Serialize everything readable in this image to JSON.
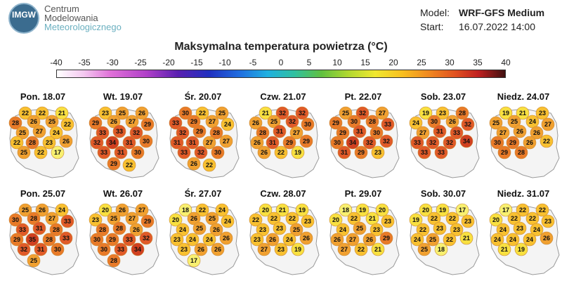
{
  "header": {
    "logo_text": "IMGW",
    "org_line1": "Centrum",
    "org_line2": "Modelowania",
    "org_line3": "Meteorologicznego",
    "model_label": "Model:",
    "model_value": "WRF-GFS Medium",
    "start_label": "Start:",
    "start_value": "16.07.2022 14:00"
  },
  "title": "Maksymalna temperatura powietrza (°C)",
  "scale": {
    "ticks": [
      "-40",
      "-35",
      "-30",
      "-25",
      "-20",
      "-15",
      "-10",
      "-5",
      "0",
      "5",
      "10",
      "15",
      "20",
      "25",
      "30",
      "35",
      "40"
    ]
  },
  "panels": [
    {
      "day": "Pon. 18.07",
      "values": [
        22,
        22,
        21,
        28,
        26,
        25,
        22,
        25,
        27,
        24,
        22,
        28,
        23,
        26,
        25,
        22,
        17
      ]
    },
    {
      "day": "Wt. 19.07",
      "values": [
        23,
        25,
        26,
        29,
        26,
        27,
        29,
        33,
        33,
        32,
        32,
        34,
        31,
        30,
        33,
        31,
        30,
        29,
        22
      ]
    },
    {
      "day": "Śr. 20.07",
      "values": [
        30,
        22,
        25,
        33,
        29,
        27,
        24,
        32,
        29,
        28,
        31,
        31,
        27,
        27,
        33,
        32,
        30,
        26,
        22
      ]
    },
    {
      "day": "Czw. 21.07",
      "values": [
        21,
        32,
        32,
        26,
        25,
        32,
        30,
        28,
        31,
        27,
        26,
        31,
        29,
        29,
        26,
        22,
        19
      ]
    },
    {
      "day": "Pt. 22.07",
      "values": [
        25,
        32,
        27,
        29,
        30,
        28,
        33,
        29,
        31,
        30,
        30,
        34,
        32,
        32,
        31,
        29,
        23
      ]
    },
    {
      "day": "Sob. 23.07",
      "values": [
        19,
        23,
        28,
        24,
        30,
        26,
        32,
        27,
        31,
        33,
        33,
        32,
        32,
        34,
        33,
        33
      ]
    },
    {
      "day": "Niedz. 24.07",
      "values": [
        19,
        21,
        23,
        25,
        25,
        24,
        27,
        27,
        26,
        26,
        30,
        29,
        26,
        22,
        29,
        28
      ]
    },
    {
      "day": "Pon. 25.07",
      "values": [
        25,
        26,
        24,
        30,
        28,
        27,
        33,
        33,
        31,
        28,
        29,
        35,
        28,
        33,
        32,
        31,
        30,
        25
      ]
    },
    {
      "day": "Wt. 26.07",
      "values": [
        20,
        26,
        27,
        23,
        25,
        27,
        29,
        28,
        28,
        26,
        30,
        29,
        33,
        32,
        30,
        33,
        34,
        28
      ]
    },
    {
      "day": "Śr. 27.07",
      "values": [
        18,
        22,
        24,
        20,
        26,
        25,
        24,
        24,
        25,
        26,
        23,
        24,
        24,
        26,
        23,
        26,
        26,
        17
      ]
    },
    {
      "day": "Czw. 28.07",
      "values": [
        20,
        21,
        19,
        22,
        22,
        22,
        23,
        23,
        23,
        25,
        23,
        26,
        24,
        26,
        27,
        23,
        19
      ]
    },
    {
      "day": "Pt. 29.07",
      "values": [
        18,
        19,
        20,
        20,
        22,
        21,
        23,
        24,
        25,
        23,
        26,
        27,
        26,
        29,
        27,
        22,
        21
      ]
    },
    {
      "day": "Sob. 30.07",
      "values": [
        20,
        19,
        17,
        19,
        22,
        22,
        23,
        22,
        23,
        23,
        24,
        25,
        22,
        21,
        25,
        18
      ]
    },
    {
      "day": "Niedz. 31.07",
      "values": [
        17,
        22,
        22,
        20,
        22,
        22,
        23,
        24,
        23,
        24,
        24,
        24,
        24,
        26,
        21,
        19
      ]
    }
  ]
}
